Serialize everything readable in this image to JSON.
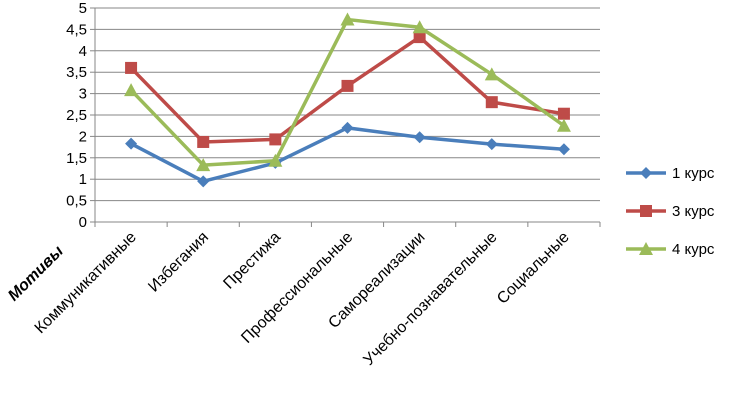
{
  "chart_data": {
    "type": "line",
    "title": "",
    "xlabel": "Мотивы",
    "ylabel": "",
    "ylim": [
      0,
      5
    ],
    "ytick_step": 0.5,
    "y_ticks": [
      "0",
      "0,5",
      "1",
      "1,5",
      "2",
      "2,5",
      "3",
      "3,5",
      "4",
      "4,5",
      "5"
    ],
    "grid": true,
    "legend_position": "right",
    "categories": [
      "Коммуникативные",
      "Избегания",
      "Престижа",
      "Профессиональные",
      "Самореализации",
      "Учебно-познавательные",
      "Социальные"
    ],
    "series": [
      {
        "name": "1 курс",
        "color": "#4a7ebb",
        "marker": "diamond",
        "values": [
          1.83,
          0.95,
          1.38,
          2.2,
          1.98,
          1.82,
          1.7
        ]
      },
      {
        "name": "3 курс",
        "color": "#be4b48",
        "marker": "square",
        "values": [
          3.6,
          1.87,
          1.93,
          3.18,
          4.32,
          2.8,
          2.53
        ]
      },
      {
        "name": "4 курс",
        "color": "#9bbb59",
        "marker": "triangle",
        "values": [
          3.08,
          1.33,
          1.43,
          4.73,
          4.55,
          3.45,
          2.25
        ]
      }
    ]
  }
}
